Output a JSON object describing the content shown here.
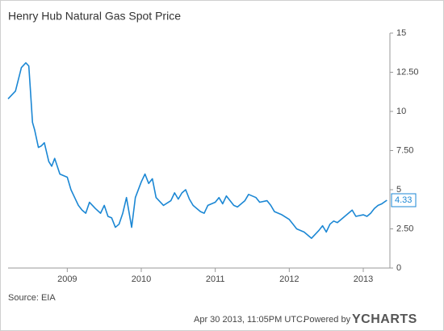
{
  "chart_data": {
    "type": "line",
    "title": "Henry Hub Natural Gas Spot Price",
    "source": "Source: EIA",
    "timestamp": "Apr 30 2013, 11:05PM UTC.",
    "powered_by": "Powered by",
    "brand": "YCHARTS",
    "x": [
      2008.2,
      2008.3,
      2008.38,
      2008.44,
      2008.48,
      2008.5,
      2008.53,
      2008.56,
      2008.61,
      2008.65,
      2008.69,
      2008.75,
      2008.79,
      2008.83,
      2008.9,
      2009.0,
      2009.05,
      2009.1,
      2009.15,
      2009.2,
      2009.25,
      2009.3,
      2009.38,
      2009.45,
      2009.5,
      2009.55,
      2009.6,
      2009.65,
      2009.7,
      2009.75,
      2009.8,
      2009.87,
      2009.92,
      2010.0,
      2010.05,
      2010.1,
      2010.15,
      2010.2,
      2010.3,
      2010.4,
      2010.45,
      2010.5,
      2010.55,
      2010.6,
      2010.65,
      2010.7,
      2010.8,
      2010.85,
      2010.9,
      2011.0,
      2011.05,
      2011.1,
      2011.15,
      2011.25,
      2011.3,
      2011.4,
      2011.45,
      2011.55,
      2011.6,
      2011.7,
      2011.75,
      2011.8,
      2011.9,
      2012.0,
      2012.05,
      2012.1,
      2012.2,
      2012.25,
      2012.3,
      2012.4,
      2012.45,
      2012.5,
      2012.55,
      2012.6,
      2012.65,
      2012.75,
      2012.8,
      2012.85,
      2012.9,
      2013.0,
      2013.05,
      2013.1,
      2013.15,
      2013.2,
      2013.25,
      2013.32
    ],
    "series": [
      {
        "name": "Henry Hub Natural Gas Spot Price",
        "color": "#1b87d4",
        "values": [
          10.8,
          11.3,
          12.8,
          13.1,
          12.9,
          11.5,
          9.3,
          8.8,
          7.7,
          7.8,
          8.0,
          6.8,
          6.5,
          7.0,
          6.0,
          5.8,
          5.0,
          4.5,
          4.0,
          3.7,
          3.5,
          4.2,
          3.8,
          3.5,
          4.0,
          3.3,
          3.2,
          2.6,
          2.8,
          3.5,
          4.5,
          2.6,
          4.5,
          5.5,
          6.0,
          5.4,
          5.7,
          4.5,
          4.0,
          4.3,
          4.8,
          4.4,
          4.8,
          5.0,
          4.4,
          4.0,
          3.6,
          3.5,
          4.0,
          4.2,
          4.5,
          4.1,
          4.6,
          4.0,
          3.9,
          4.3,
          4.7,
          4.5,
          4.2,
          4.3,
          4.0,
          3.6,
          3.4,
          3.1,
          2.8,
          2.5,
          2.3,
          2.1,
          1.9,
          2.4,
          2.7,
          2.3,
          2.8,
          3.0,
          2.9,
          3.3,
          3.5,
          3.7,
          3.3,
          3.4,
          3.3,
          3.5,
          3.8,
          4.0,
          4.1,
          4.33
        ]
      }
    ],
    "xlim": [
      2008.2,
      2013.36
    ],
    "xticks": [
      2009,
      2010,
      2011,
      2012,
      2013
    ],
    "ylim": [
      0,
      15
    ],
    "yticks": [
      0,
      {
        "value": 2.5,
        "label": "2.50"
      },
      5,
      {
        "value": 7.5,
        "label": "7.50"
      },
      10,
      {
        "value": 12.5,
        "label": "12.50"
      },
      15
    ],
    "grid": false
  }
}
